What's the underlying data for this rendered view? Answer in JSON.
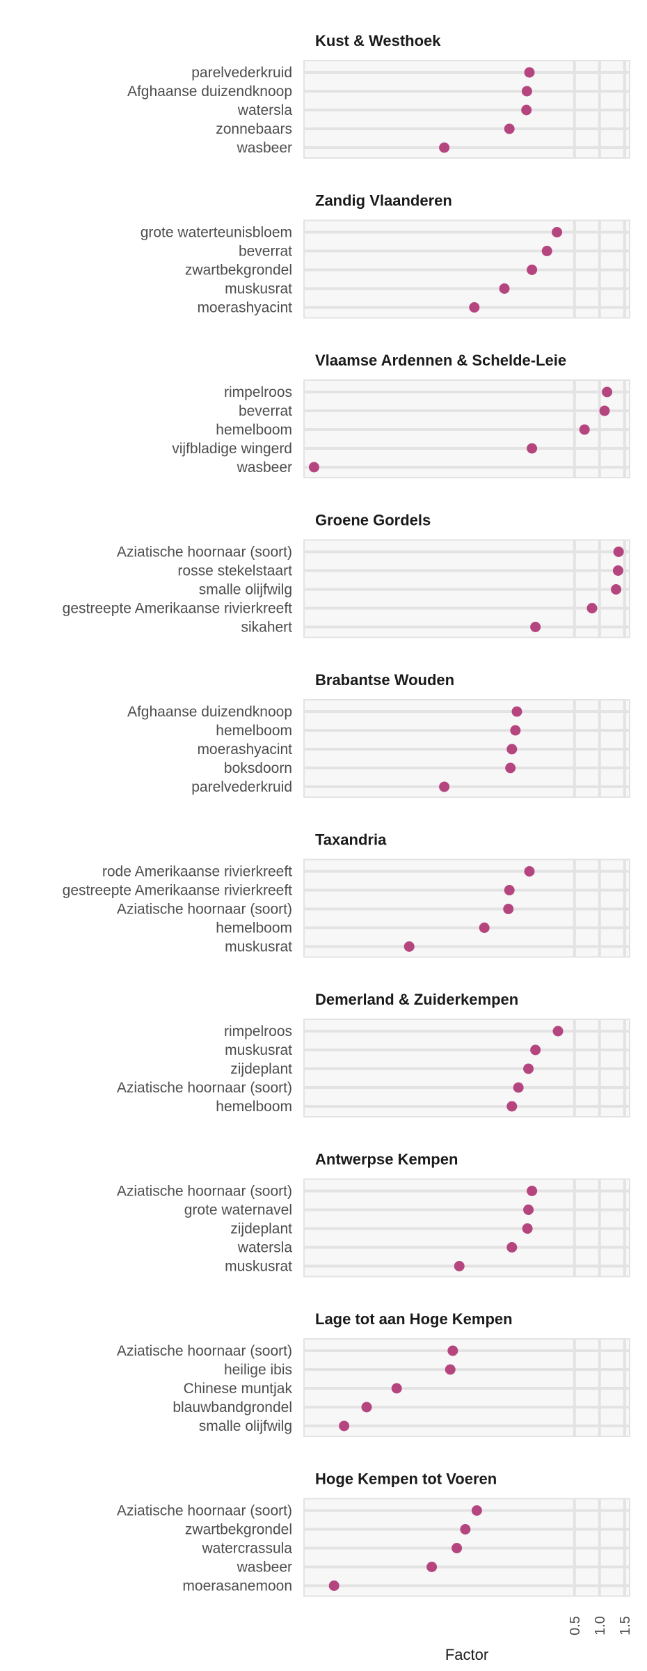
{
  "chart_data": {
    "type": "scatter",
    "xlabel": "Factor",
    "x_ticks": [
      0.5,
      1.0,
      1.5
    ],
    "x_tick_labels": [
      "0.5",
      "1.0",
      "1.5"
    ],
    "xlim": [
      -4.9,
      1.6
    ],
    "point_color": "#B5457E",
    "panel_background": "#F7F7F7",
    "grid_color": "#E3E3E3",
    "grid": true,
    "legend": "none",
    "panels": [
      {
        "title": "Kust & Westhoek",
        "labels": [
          "parelvederkruid",
          "Afghaanse duizendknoop",
          "watersla",
          "zonnebaars",
          "wasbeer"
        ],
        "values": [
          -0.4,
          -0.45,
          -0.46,
          -0.8,
          -2.1
        ]
      },
      {
        "title": "Zandig Vlaanderen",
        "labels": [
          "grote waterteunisbloem",
          "beverrat",
          "zwartbekgrondel",
          "muskusrat",
          "moerashyacint"
        ],
        "values": [
          0.15,
          -0.05,
          -0.35,
          -0.9,
          -1.5
        ]
      },
      {
        "title": "Vlaamse Ardennen & Schelde-Leie",
        "labels": [
          "rimpelroos",
          "beverrat",
          "hemelboom",
          "vijfbladige wingerd",
          "wasbeer"
        ],
        "values": [
          1.15,
          1.1,
          0.7,
          -0.35,
          -4.7
        ]
      },
      {
        "title": "Groene Gordels",
        "labels": [
          "Aziatische hoornaar (soort)",
          "rosse stekelstaart",
          "smalle olijfwilg",
          "gestreepte Amerikaanse rivierkreeft",
          "sikahert"
        ],
        "values": [
          1.38,
          1.37,
          1.33,
          0.85,
          -0.28
        ]
      },
      {
        "title": "Brabantse Wouden",
        "labels": [
          "Afghaanse duizendknoop",
          "hemelboom",
          "moerashyacint",
          "boksdoorn",
          "parelvederkruid"
        ],
        "values": [
          -0.65,
          -0.68,
          -0.75,
          -0.78,
          -2.1
        ]
      },
      {
        "title": "Taxandria",
        "labels": [
          "rode Amerikaanse rivierkreeft",
          "gestreepte Amerikaanse rivierkreeft",
          "Aziatische hoornaar (soort)",
          "hemelboom",
          "muskusrat"
        ],
        "values": [
          -0.4,
          -0.8,
          -0.82,
          -1.3,
          -2.8
        ]
      },
      {
        "title": "Demerland & Zuiderkempen",
        "labels": [
          "rimpelroos",
          "muskusrat",
          "zijdeplant",
          "Aziatische hoornaar (soort)",
          "hemelboom"
        ],
        "values": [
          0.17,
          -0.28,
          -0.42,
          -0.62,
          -0.75
        ]
      },
      {
        "title": "Antwerpse Kempen",
        "labels": [
          "Aziatische hoornaar (soort)",
          "grote waternavel",
          "zijdeplant",
          "watersla",
          "muskusrat"
        ],
        "values": [
          -0.35,
          -0.42,
          -0.44,
          -0.75,
          -1.8
        ]
      },
      {
        "title": "Lage tot aan Hoge Kempen",
        "labels": [
          "Aziatische hoornaar (soort)",
          "heilige ibis",
          "Chinese muntjak",
          "blauwbandgrondel",
          "smalle olijfwilg"
        ],
        "values": [
          -1.93,
          -1.98,
          -3.05,
          -3.65,
          -4.1
        ]
      },
      {
        "title": "Hoge Kempen tot Voeren",
        "labels": [
          "Aziatische hoornaar (soort)",
          "zwartbekgrondel",
          "watercrassula",
          "wasbeer",
          "moerasanemoon"
        ],
        "values": [
          -1.45,
          -1.68,
          -1.85,
          -2.35,
          -4.3
        ]
      }
    ]
  }
}
